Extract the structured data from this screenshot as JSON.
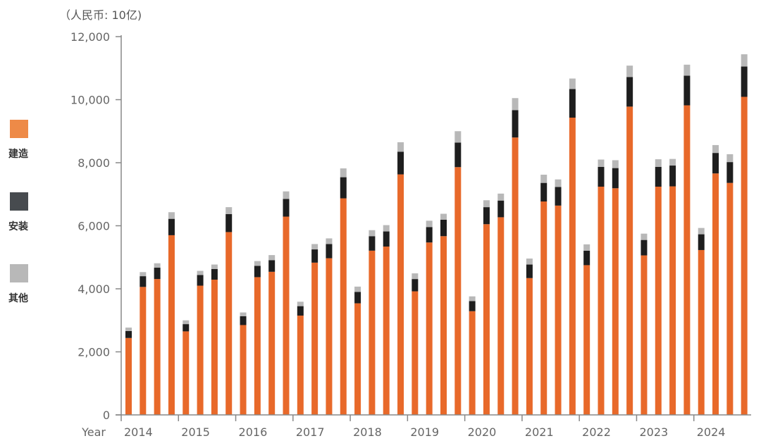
{
  "unit_label": "（人民币: 10亿)",
  "legend": [
    {
      "label": "建造",
      "color": "#EE8A47"
    },
    {
      "label": "安装",
      "color": "#474B4F"
    },
    {
      "label": "其他",
      "color": "#B8B8B8"
    }
  ],
  "chart_data": {
    "type": "bar",
    "stacked": true,
    "xlabel": "Year",
    "ylim": [
      0,
      12000
    ],
    "yticks": [
      "0",
      "2,000",
      "4,000",
      "6,000",
      "8,000",
      "10,000",
      "12,000"
    ],
    "yticks_values": [
      0,
      2000,
      4000,
      6000,
      8000,
      10000,
      12000
    ],
    "years": [
      "2014",
      "2015",
      "2016",
      "2017",
      "2018",
      "2019",
      "2020",
      "2021",
      "2022",
      "2023",
      "2024"
    ],
    "bars_per_year": 4,
    "series_colors": {
      "construction": "#E8692A",
      "installation": "#1E1E1E",
      "other": "#B8B8B8"
    },
    "series": [
      {
        "name": "建造",
        "values": [
          2440,
          4060,
          4310,
          5700,
          2650,
          4100,
          4290,
          5800,
          2850,
          4370,
          4540,
          6290,
          3150,
          4830,
          4970,
          6870,
          3540,
          5210,
          5340,
          7630,
          3920,
          5470,
          5670,
          7860,
          3290,
          6050,
          6270,
          8800,
          4340,
          6770,
          6640,
          9430,
          4750,
          7240,
          7190,
          9780,
          5060,
          7240,
          7250,
          9820,
          5230,
          7660,
          7360,
          10090
        ]
      },
      {
        "name": "安装",
        "values": [
          220,
          340,
          360,
          520,
          230,
          340,
          340,
          570,
          280,
          360,
          370,
          560,
          300,
          420,
          450,
          670,
          360,
          460,
          480,
          720,
          390,
          490,
          520,
          780,
          320,
          540,
          530,
          870,
          430,
          590,
          590,
          910,
          460,
          630,
          640,
          940,
          490,
          630,
          660,
          940,
          500,
          650,
          660,
          960
        ]
      },
      {
        "name": "其他",
        "values": [
          110,
          130,
          140,
          210,
          120,
          130,
          140,
          220,
          120,
          150,
          160,
          240,
          140,
          170,
          180,
          280,
          170,
          190,
          200,
          300,
          180,
          200,
          190,
          360,
          150,
          220,
          220,
          380,
          190,
          260,
          240,
          330,
          200,
          230,
          250,
          360,
          200,
          240,
          210,
          350,
          200,
          250,
          250,
          390
        ]
      }
    ]
  }
}
